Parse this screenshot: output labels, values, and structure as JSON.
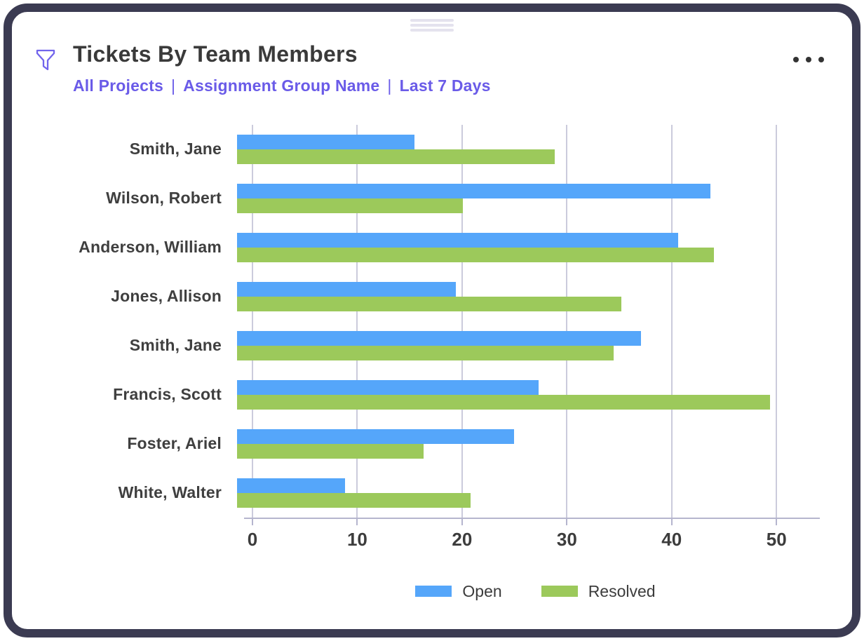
{
  "header": {
    "title": "Tickets By Team Members",
    "filters": [
      "All Projects",
      "Assignment Group Name",
      "Last 7 Days"
    ],
    "separator": "|"
  },
  "chart_data": {
    "type": "bar",
    "orientation": "horizontal",
    "title": "Tickets By Team Members",
    "categories": [
      "Smith, Jane",
      "Wilson, Robert",
      "Anderson, William",
      "Jones, Allison",
      "Smith, Jane",
      "Francis, Scott",
      "Foster, Ariel",
      "White, Walter"
    ],
    "series": [
      {
        "name": "Open",
        "color": "#55A6FA",
        "values": [
          16.5,
          44,
          41,
          20.3,
          37.5,
          28,
          25.7,
          10
        ]
      },
      {
        "name": "Resolved",
        "color": "#9CC95B",
        "values": [
          29.5,
          21,
          44.3,
          35.7,
          35,
          49.5,
          17.3,
          21.7
        ]
      }
    ],
    "x_ticks": [
      0,
      10,
      20,
      30,
      40,
      50
    ],
    "xlim": [
      0,
      54
    ],
    "xlabel": "",
    "ylabel": "",
    "grid": "vertical",
    "legend_position": "bottom"
  },
  "colors": {
    "accent_purple": "#6A5BE8",
    "card_border": "#3B3B52",
    "open_blue": "#55A6FA",
    "resolved_green": "#9CC95B",
    "gridline": "#CBCBDC",
    "axis_line": "#B5B5CE",
    "text_dark": "#3A3A3A"
  }
}
